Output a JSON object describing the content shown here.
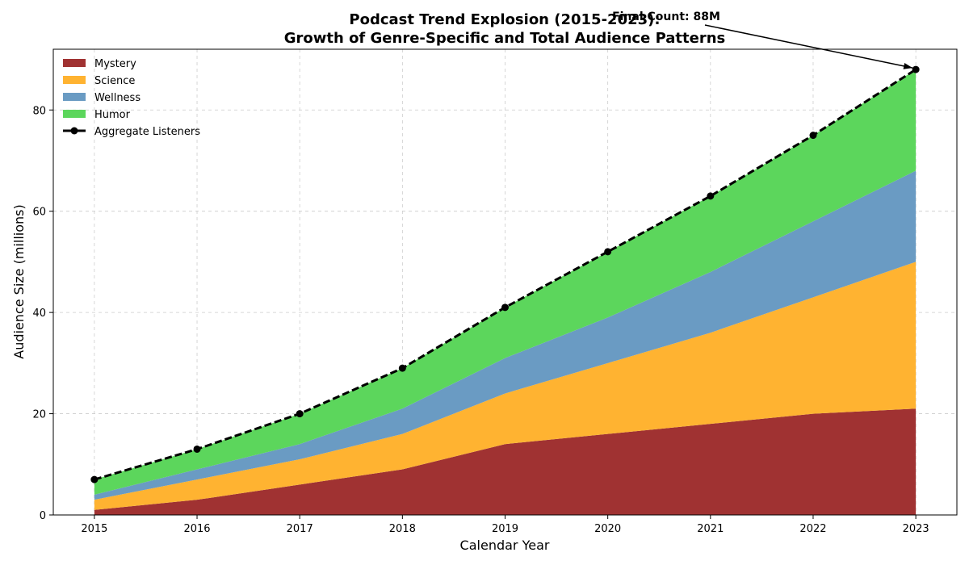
{
  "chart_data": {
    "type": "area",
    "stacked": true,
    "title": "Podcast Trend Explosion (2015-2023):",
    "subtitle": "Growth of Genre-Specific and Total Audience Patterns",
    "xlabel": "Calendar Year",
    "ylabel": "Audience Size (millions)",
    "x": [
      2015,
      2016,
      2017,
      2018,
      2019,
      2020,
      2021,
      2022,
      2023
    ],
    "xticks": [
      "2015",
      "2016",
      "2017",
      "2018",
      "2019",
      "2020",
      "2021",
      "2022",
      "2023"
    ],
    "ylim": [
      0,
      92
    ],
    "yticks": [
      0,
      20,
      40,
      60,
      80
    ],
    "grid": true,
    "legend_position": "top-left",
    "series": [
      {
        "name": "Mystery",
        "color": "#a03232",
        "values": [
          1,
          3,
          6,
          9,
          14,
          16,
          18,
          20,
          21
        ]
      },
      {
        "name": "Science",
        "color": "#ffb331",
        "values": [
          2,
          4,
          5,
          7,
          10,
          14,
          18,
          23,
          29
        ]
      },
      {
        "name": "Wellness",
        "color": "#6a9bc3",
        "values": [
          1,
          2,
          3,
          5,
          7,
          9,
          12,
          15,
          18
        ]
      },
      {
        "name": "Humor",
        "color": "#5cd65c",
        "values": [
          3,
          4,
          6,
          8,
          10,
          13,
          15,
          17,
          20
        ]
      }
    ],
    "total": {
      "name": "Aggregate Listeners",
      "color": "#000000",
      "values": [
        7,
        13,
        20,
        29,
        41,
        52,
        63,
        75,
        88
      ]
    },
    "annotation": {
      "text": "Final Count: 88M",
      "target_x": 2023,
      "target_y": 88
    }
  }
}
